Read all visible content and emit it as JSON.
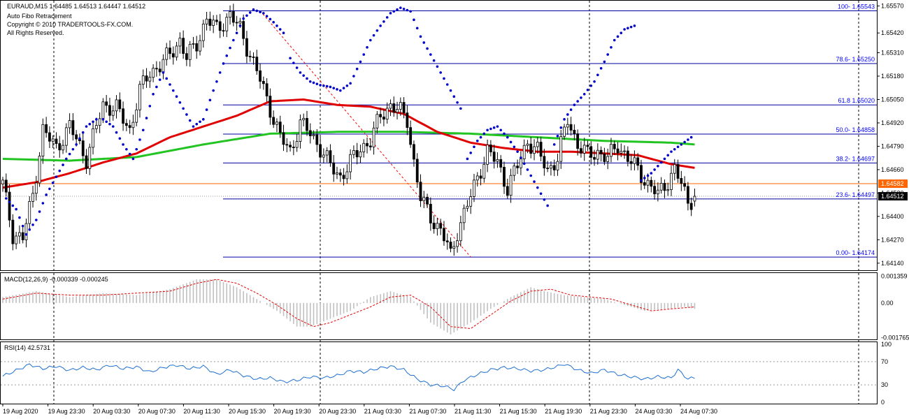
{
  "header": {
    "symbol_line": "EURAUD,M15  1.64485 1.64513 1.64447 1.64512",
    "indicator_name": "Auto Fibo Retracement",
    "copyright": "Copyright © 2010 TRADERTOOLS-FX.COM.",
    "rights": "All Rights Reserved."
  },
  "colors": {
    "candle": "#000000",
    "ma_fast": "#e00000",
    "ma_slow": "#22c422",
    "psar": "#0000cc",
    "fib": "#0000a0",
    "fib_label": "#0000ff",
    "current_price": "#ff6600",
    "bid_line": "#999999",
    "macd_hist": "#c0c0c0",
    "macd_signal": "#e00000",
    "rsi": "#1e6fd0"
  },
  "chart_data": [
    {
      "type": "candlestick",
      "panel": "price",
      "title": "EURAUD,M15",
      "ylim": [
        1.6412,
        1.6558
      ],
      "y_ticks": [
        "1.65570",
        "1.65420",
        "1.65310",
        "1.65180",
        "1.65050",
        "1.64920",
        "1.64790",
        "1.64660",
        "1.64530",
        "1.64400",
        "1.64270",
        "1.64140"
      ],
      "y_tick_values": [
        1.6557,
        1.6542,
        1.6531,
        1.6518,
        1.6505,
        1.6492,
        1.6479,
        1.6466,
        1.6453,
        1.644,
        1.6427,
        1.6414
      ],
      "x_labels": [
        "19 Aug 2020",
        "19 Aug 23:30",
        "20 Aug 03:30",
        "20 Aug 07:30",
        "20 Aug 11:30",
        "20 Aug 15:30",
        "20 Aug 19:30",
        "20 Aug 23:30",
        "21 Aug 03:30",
        "21 Aug 07:30",
        "21 Aug 11:30",
        "21 Aug 15:30",
        "21 Aug 19:30",
        "21 Aug 23:30",
        "24 Aug 03:30",
        "24 Aug 07:30"
      ],
      "price_anchors": [
        [
          0,
          1.6458
        ],
        [
          3,
          1.643
        ],
        [
          6,
          1.6428
        ],
        [
          9,
          1.6452
        ],
        [
          12,
          1.6488
        ],
        [
          16,
          1.6478
        ],
        [
          20,
          1.649
        ],
        [
          25,
          1.6472
        ],
        [
          30,
          1.6502
        ],
        [
          34,
          1.65
        ],
        [
          38,
          1.6488
        ],
        [
          41,
          1.651
        ],
        [
          44,
          1.652
        ],
        [
          47,
          1.6524
        ],
        [
          50,
          1.653
        ],
        [
          53,
          1.6538
        ],
        [
          55,
          1.6528
        ],
        [
          58,
          1.6536
        ],
        [
          61,
          1.655
        ],
        [
          64,
          1.6544
        ],
        [
          68,
          1.6552
        ],
        [
          71,
          1.6544
        ],
        [
          74,
          1.653
        ],
        [
          77,
          1.6516
        ],
        [
          80,
          1.65
        ],
        [
          83,
          1.6484
        ],
        [
          86,
          1.6476
        ],
        [
          89,
          1.6492
        ],
        [
          92,
          1.6486
        ],
        [
          95,
          1.6478
        ],
        [
          98,
          1.6468
        ],
        [
          101,
          1.6462
        ],
        [
          104,
          1.647
        ],
        [
          107,
          1.6478
        ],
        [
          110,
          1.6482
        ],
        [
          113,
          1.6496
        ],
        [
          116,
          1.6502
        ],
        [
          119,
          1.6498
        ],
        [
          121,
          1.6494
        ],
        [
          123,
          1.647
        ],
        [
          125,
          1.645
        ],
        [
          128,
          1.644
        ],
        [
          131,
          1.6432
        ],
        [
          133,
          1.6424
        ],
        [
          134,
          1.6418
        ],
        [
          136,
          1.6432
        ],
        [
          139,
          1.6446
        ],
        [
          142,
          1.6462
        ],
        [
          145,
          1.6476
        ],
        [
          148,
          1.647
        ],
        [
          151,
          1.6456
        ],
        [
          154,
          1.6468
        ],
        [
          157,
          1.6482
        ],
        [
          160,
          1.6476
        ],
        [
          163,
          1.6466
        ],
        [
          166,
          1.6472
        ],
        [
          169,
          1.6494
        ],
        [
          172,
          1.648
        ],
        [
          175,
          1.6474
        ],
        [
          178,
          1.6476
        ],
        [
          181,
          1.6472
        ],
        [
          184,
          1.648
        ],
        [
          187,
          1.6472
        ],
        [
          190,
          1.6466
        ],
        [
          193,
          1.6458
        ],
        [
          196,
          1.6452
        ],
        [
          199,
          1.646
        ],
        [
          201,
          1.6466
        ],
        [
          203,
          1.6458
        ],
        [
          205,
          1.6448
        ],
        [
          207,
          1.6451
        ]
      ],
      "candle_count": 208,
      "last_candle": {
        "open": 1.64485,
        "high": 1.64513,
        "low": 1.64447,
        "close": 1.64512
      },
      "ma_fast": [
        [
          0,
          1.6456
        ],
        [
          10,
          1.6459
        ],
        [
          20,
          1.6464
        ],
        [
          30,
          1.647
        ],
        [
          40,
          1.6475
        ],
        [
          50,
          1.6484
        ],
        [
          60,
          1.649
        ],
        [
          70,
          1.6496
        ],
        [
          80,
          1.6504
        ],
        [
          90,
          1.6505
        ],
        [
          100,
          1.6502
        ],
        [
          110,
          1.6501
        ],
        [
          120,
          1.6497
        ],
        [
          130,
          1.6487
        ],
        [
          140,
          1.6481
        ],
        [
          150,
          1.6478
        ],
        [
          160,
          1.6476
        ],
        [
          170,
          1.6476
        ],
        [
          180,
          1.6475
        ],
        [
          190,
          1.6474
        ],
        [
          200,
          1.6469
        ],
        [
          207,
          1.6467
        ]
      ],
      "ma_slow": [
        [
          0,
          1.6472
        ],
        [
          20,
          1.6471
        ],
        [
          40,
          1.6473
        ],
        [
          60,
          1.648
        ],
        [
          80,
          1.6486
        ],
        [
          100,
          1.6487
        ],
        [
          120,
          1.6487
        ],
        [
          140,
          1.6486
        ],
        [
          160,
          1.6484
        ],
        [
          180,
          1.6482
        ],
        [
          200,
          1.6481
        ],
        [
          207,
          1.648
        ]
      ],
      "psar_segments": [
        [
          [
            1,
            1.645
          ],
          [
            4,
            1.6444
          ],
          [
            7,
            1.643
          ],
          [
            10,
            1.6438
          ],
          [
            13,
            1.6452
          ],
          [
            16,
            1.6462
          ],
          [
            19,
            1.6472
          ],
          [
            22,
            1.648
          ],
          [
            25,
            1.649
          ],
          [
            28,
            1.6494
          ]
        ],
        [
          [
            30,
            1.6494
          ],
          [
            33,
            1.649
          ],
          [
            36,
            1.648
          ],
          [
            39,
            1.6472
          ],
          [
            42,
            1.6488
          ],
          [
            45,
            1.6508
          ],
          [
            48,
            1.652
          ],
          [
            51,
            1.651
          ],
          [
            54,
            1.65
          ],
          [
            57,
            1.649
          ],
          [
            60,
            1.6494
          ],
          [
            63,
            1.651
          ],
          [
            66,
            1.6525
          ],
          [
            69,
            1.6538
          ],
          [
            72,
            1.655
          ],
          [
            75,
            1.6555
          ],
          [
            78,
            1.6553
          ],
          [
            81,
            1.6548
          ],
          [
            84,
            1.6542
          ]
        ],
        [
          [
            86,
            1.6528
          ],
          [
            89,
            1.652
          ],
          [
            92,
            1.6515
          ],
          [
            95,
            1.6513
          ],
          [
            98,
            1.6512
          ],
          [
            101,
            1.651
          ],
          [
            104,
            1.6514
          ],
          [
            107,
            1.6526
          ],
          [
            110,
            1.6538
          ],
          [
            113,
            1.6546
          ],
          [
            116,
            1.6553
          ],
          [
            119,
            1.6556
          ],
          [
            122,
            1.6554
          ],
          [
            125,
            1.654
          ],
          [
            128,
            1.653
          ],
          [
            131,
            1.652
          ],
          [
            134,
            1.651
          ],
          [
            137,
            1.65
          ]
        ],
        [
          [
            139,
            1.6472
          ],
          [
            142,
            1.6482
          ],
          [
            145,
            1.6488
          ],
          [
            148,
            1.649
          ],
          [
            151,
            1.6484
          ],
          [
            154,
            1.6476
          ],
          [
            157,
            1.6466
          ],
          [
            160,
            1.6456
          ],
          [
            163,
            1.6446
          ]
        ],
        [
          [
            165,
            1.648
          ],
          [
            168,
            1.6494
          ],
          [
            171,
            1.6502
          ],
          [
            174,
            1.6508
          ],
          [
            177,
            1.6515
          ],
          [
            180,
            1.6526
          ],
          [
            183,
            1.6538
          ],
          [
            186,
            1.6544
          ],
          [
            189,
            1.6546
          ]
        ],
        [
          [
            191,
            1.646
          ],
          [
            194,
            1.6464
          ],
          [
            197,
            1.647
          ],
          [
            200,
            1.6476
          ],
          [
            203,
            1.648
          ],
          [
            206,
            1.6484
          ]
        ]
      ],
      "fibo_levels": [
        {
          "label": "100- 1.65543",
          "value": 1.65543
        },
        {
          "label": "78.6- 1.65250",
          "value": 1.6525
        },
        {
          "label": "61.8 1.65020",
          "value": 1.6502
        },
        {
          "label": "50.0- 1.64858",
          "value": 1.64858
        },
        {
          "label": "38.2- 1.64697",
          "value": 1.64697
        },
        {
          "label": "23.6- 1.64497",
          "value": 1.64497
        },
        {
          "label": "0.00- 1.64174",
          "value": 1.64174
        }
      ],
      "current_price": {
        "label": "1.64582",
        "value": 1.64582
      },
      "bid_price": {
        "label": "1.64512",
        "value": 1.64512
      }
    },
    {
      "type": "macd",
      "panel": "macd",
      "title": "MACD(12,26,9) -0.000339 -0.000245",
      "ylim": [
        -0.00178,
        0.00145
      ],
      "y_ticks": [
        "0.001359",
        "0.00",
        "-0.001765"
      ],
      "y_tick_values": [
        0.001359,
        0.0,
        -0.001765
      ],
      "histogram": [
        [
          0,
          0.0003
        ],
        [
          10,
          0.0006
        ],
        [
          20,
          0.0003
        ],
        [
          30,
          0.0005
        ],
        [
          40,
          0.0004
        ],
        [
          50,
          0.0007
        ],
        [
          58,
          0.0012
        ],
        [
          64,
          0.0012
        ],
        [
          70,
          0.0008
        ],
        [
          76,
          0.0002
        ],
        [
          82,
          -0.0004
        ],
        [
          88,
          -0.0012
        ],
        [
          92,
          -0.0012
        ],
        [
          98,
          -0.0008
        ],
        [
          104,
          -0.0004
        ],
        [
          110,
          0.0003
        ],
        [
          116,
          0.0006
        ],
        [
          122,
          0.0003
        ],
        [
          128,
          -0.001
        ],
        [
          134,
          -0.0016
        ],
        [
          140,
          -0.001
        ],
        [
          146,
          -0.0003
        ],
        [
          152,
          0.0003
        ],
        [
          158,
          0.0008
        ],
        [
          162,
          0.0006
        ],
        [
          168,
          0.0004
        ],
        [
          174,
          0.0003
        ],
        [
          180,
          0.0002
        ],
        [
          186,
          -0.0001
        ],
        [
          192,
          -0.0004
        ],
        [
          198,
          -0.0003
        ],
        [
          204,
          -0.0002
        ],
        [
          207,
          -0.0003
        ]
      ],
      "signal": [
        [
          0,
          0.0002
        ],
        [
          10,
          0.0005
        ],
        [
          20,
          0.0004
        ],
        [
          30,
          0.0004
        ],
        [
          40,
          0.0005
        ],
        [
          50,
          0.0006
        ],
        [
          58,
          0.001
        ],
        [
          64,
          0.0012
        ],
        [
          70,
          0.001
        ],
        [
          76,
          0.0005
        ],
        [
          82,
          -0.0001
        ],
        [
          88,
          -0.0008
        ],
        [
          93,
          -0.0012
        ],
        [
          98,
          -0.001
        ],
        [
          104,
          -0.0006
        ],
        [
          110,
          -0.0002
        ],
        [
          116,
          0.0003
        ],
        [
          122,
          0.0004
        ],
        [
          128,
          -0.0002
        ],
        [
          134,
          -0.0012
        ],
        [
          140,
          -0.0013
        ],
        [
          146,
          -0.0006
        ],
        [
          152,
          0.0001
        ],
        [
          158,
          0.0006
        ],
        [
          164,
          0.0007
        ],
        [
          170,
          0.0004
        ],
        [
          176,
          0.0003
        ],
        [
          182,
          0.0002
        ],
        [
          188,
          -0.0001
        ],
        [
          194,
          -0.0004
        ],
        [
          200,
          -0.0003
        ],
        [
          207,
          -0.0002
        ]
      ]
    },
    {
      "type": "line",
      "panel": "rsi",
      "title": "RSI(14) 42.5731",
      "ylim": [
        0,
        100
      ],
      "y_ticks": [
        "100",
        "70",
        "30",
        "0"
      ],
      "y_tick_values": [
        100,
        70,
        30,
        0
      ],
      "levels": [
        70,
        30
      ],
      "values": [
        [
          0,
          45
        ],
        [
          4,
          55
        ],
        [
          8,
          65
        ],
        [
          12,
          58
        ],
        [
          16,
          62
        ],
        [
          20,
          55
        ],
        [
          24,
          60
        ],
        [
          28,
          56
        ],
        [
          32,
          64
        ],
        [
          36,
          58
        ],
        [
          40,
          61
        ],
        [
          44,
          52
        ],
        [
          48,
          60
        ],
        [
          52,
          64
        ],
        [
          56,
          58
        ],
        [
          60,
          62
        ],
        [
          64,
          48
        ],
        [
          68,
          56
        ],
        [
          72,
          46
        ],
        [
          76,
          40
        ],
        [
          80,
          42
        ],
        [
          84,
          35
        ],
        [
          88,
          38
        ],
        [
          92,
          44
        ],
        [
          96,
          42
        ],
        [
          100,
          46
        ],
        [
          104,
          54
        ],
        [
          108,
          52
        ],
        [
          112,
          58
        ],
        [
          116,
          62
        ],
        [
          120,
          56
        ],
        [
          124,
          40
        ],
        [
          128,
          30
        ],
        [
          132,
          28
        ],
        [
          135,
          22
        ],
        [
          138,
          38
        ],
        [
          142,
          48
        ],
        [
          146,
          56
        ],
        [
          150,
          60
        ],
        [
          154,
          58
        ],
        [
          158,
          54
        ],
        [
          162,
          56
        ],
        [
          166,
          62
        ],
        [
          168,
          66
        ],
        [
          172,
          56
        ],
        [
          176,
          50
        ],
        [
          180,
          56
        ],
        [
          184,
          48
        ],
        [
          188,
          44
        ],
        [
          192,
          40
        ],
        [
          196,
          44
        ],
        [
          200,
          42
        ],
        [
          202,
          56
        ],
        [
          205,
          40
        ],
        [
          207,
          42.5731
        ]
      ]
    }
  ]
}
